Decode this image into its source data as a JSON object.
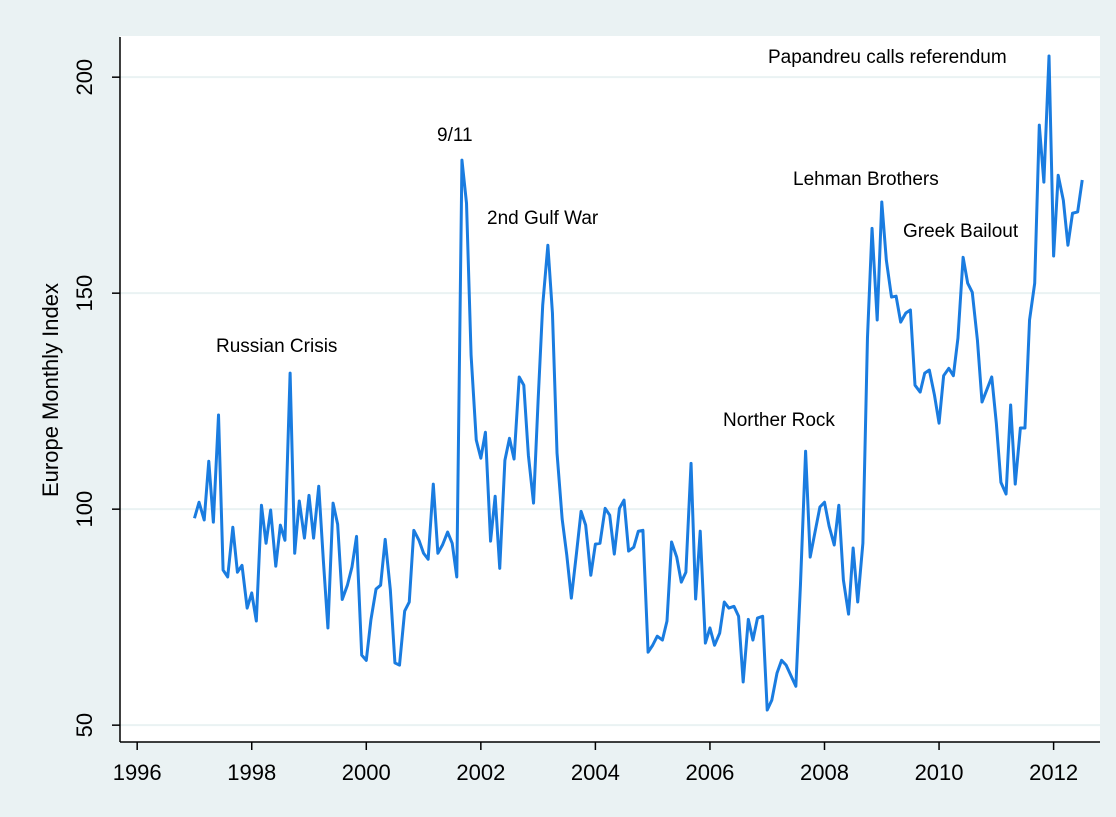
{
  "chart_data": {
    "type": "line",
    "y_label": "Europe Monthly Index",
    "color": "#1a7ce0",
    "grid": true,
    "xlim": [
      1995.7,
      2012.81
    ],
    "xticks": [
      1996,
      1998,
      2000,
      2002,
      2004,
      2006,
      2008,
      2010,
      2012
    ],
    "ylim": [
      46.1,
      209.3
    ],
    "yticks": [
      50,
      100,
      150,
      200
    ],
    "x": [
      1997.0,
      1997.08,
      1997.17,
      1997.25,
      1997.33,
      1997.42,
      1997.5,
      1997.58,
      1997.67,
      1997.75,
      1997.83,
      1997.92,
      1998.0,
      1998.08,
      1998.17,
      1998.25,
      1998.33,
      1998.42,
      1998.5,
      1998.58,
      1998.67,
      1998.75,
      1998.83,
      1998.92,
      1999.0,
      1999.08,
      1999.17,
      1999.25,
      1999.33,
      1999.42,
      1999.5,
      1999.58,
      1999.67,
      1999.75,
      1999.83,
      1999.92,
      2000.0,
      2000.08,
      2000.17,
      2000.25,
      2000.33,
      2000.42,
      2000.5,
      2000.58,
      2000.67,
      2000.75,
      2000.83,
      2000.92,
      2001.0,
      2001.08,
      2001.17,
      2001.25,
      2001.33,
      2001.42,
      2001.5,
      2001.58,
      2001.67,
      2001.75,
      2001.83,
      2001.92,
      2002.0,
      2002.08,
      2002.17,
      2002.25,
      2002.33,
      2002.42,
      2002.5,
      2002.58,
      2002.67,
      2002.75,
      2002.83,
      2002.92,
      2003.0,
      2003.08,
      2003.17,
      2003.25,
      2003.33,
      2003.42,
      2003.5,
      2003.58,
      2003.67,
      2003.75,
      2003.83,
      2003.92,
      2004.0,
      2004.08,
      2004.17,
      2004.25,
      2004.33,
      2004.42,
      2004.5,
      2004.58,
      2004.67,
      2004.75,
      2004.83,
      2004.92,
      2005.0,
      2005.08,
      2005.17,
      2005.25,
      2005.33,
      2005.42,
      2005.5,
      2005.58,
      2005.67,
      2005.75,
      2005.83,
      2005.92,
      2006.0,
      2006.08,
      2006.17,
      2006.25,
      2006.33,
      2006.42,
      2006.5,
      2006.58,
      2006.67,
      2006.75,
      2006.83,
      2006.92,
      2007.0,
      2007.08,
      2007.17,
      2007.25,
      2007.33,
      2007.42,
      2007.5,
      2007.58,
      2007.67,
      2007.75,
      2007.83,
      2007.92,
      2008.0,
      2008.08,
      2008.17,
      2008.25,
      2008.33,
      2008.42,
      2008.5,
      2008.58,
      2008.67,
      2008.75,
      2008.83,
      2008.92,
      2009.0,
      2009.08,
      2009.17,
      2009.25,
      2009.33,
      2009.42,
      2009.5,
      2009.58,
      2009.67,
      2009.75,
      2009.83,
      2009.92,
      2010.0,
      2010.08,
      2010.17,
      2010.25,
      2010.33,
      2010.42,
      2010.5,
      2010.58,
      2010.67,
      2010.75,
      2010.83,
      2010.92,
      2011.0,
      2011.08,
      2011.17,
      2011.25,
      2011.33,
      2011.42,
      2011.5,
      2011.58,
      2011.67,
      2011.75,
      2011.83,
      2011.92,
      2012.0,
      2012.08,
      2012.17,
      2012.25,
      2012.33,
      2012.42,
      2012.5
    ],
    "values": [
      97.9,
      101.6,
      97.5,
      111.1,
      97,
      121.8,
      85.9,
      84.3,
      95.8,
      85.4,
      87,
      77.1,
      80.6,
      74.1,
      100.9,
      92.1,
      99.8,
      86.8,
      96.3,
      92.8,
      131.5,
      89.8,
      101.9,
      93.3,
      103.2,
      93.3,
      105.3,
      88.2,
      72.5,
      101.4,
      96.5,
      79.1,
      82.4,
      86.6,
      93.7,
      66.2,
      65,
      74.3,
      81.5,
      82.4,
      93,
      81.3,
      64.4,
      63.9,
      76.4,
      78.5,
      95.1,
      92.8,
      89.8,
      88.4,
      105.8,
      89.8,
      91.7,
      94.7,
      92.1,
      84.3,
      180.8,
      170.8,
      135.6,
      116,
      111.8,
      117.8,
      92.6,
      103,
      86.3,
      111.3,
      116.4,
      111.6,
      130.6,
      128.7,
      112.5,
      101.4,
      125.2,
      147.2,
      161.1,
      145.4,
      113,
      97.7,
      89.4,
      79.4,
      89.8,
      99.5,
      96.3,
      84.7,
      91.9,
      92.1,
      100.2,
      98.6,
      89.6,
      100.2,
      102.1,
      90.3,
      91.2,
      94.9,
      95.1,
      66.9,
      68.5,
      70.6,
      69.7,
      74.1,
      92.4,
      88.9,
      83.1,
      85.4,
      110.6,
      79.2,
      94.9,
      69,
      72.5,
      68.5,
      71.3,
      78.5,
      77.1,
      77.5,
      75.2,
      60,
      74.5,
      69.7,
      74.8,
      75.2,
      53.5,
      55.8,
      62,
      65,
      63.9,
      61.3,
      59,
      82.4,
      113.4,
      88.9,
      94.4,
      100.5,
      101.6,
      96.1,
      91.7,
      100.9,
      83.6,
      75.7,
      91,
      78.5,
      92.1,
      139.6,
      165,
      143.8,
      171.1,
      157.6,
      149.1,
      149.3,
      143.3,
      145.4,
      146.1,
      128.7,
      127.1,
      131.5,
      132.2,
      126.4,
      119.9,
      130.9,
      132.6,
      130.9,
      139.6,
      158.3,
      152.3,
      150.2,
      139.1,
      124.8,
      127.5,
      130.6,
      119.9,
      106.2,
      103.5,
      124.1,
      105.8,
      118.8,
      118.8,
      143.8,
      152.3,
      188.9,
      175.7,
      204.9,
      158.6,
      177.3,
      171.5,
      161.1,
      168.5,
      168.8,
      176.2
    ],
    "annotations": [
      "Russian Crisis",
      "9/11",
      "2nd Gulf War",
      "Norther Rock",
      "Lehman Brothers",
      "Greek Bailout",
      "Papandreu calls referendum"
    ]
  }
}
